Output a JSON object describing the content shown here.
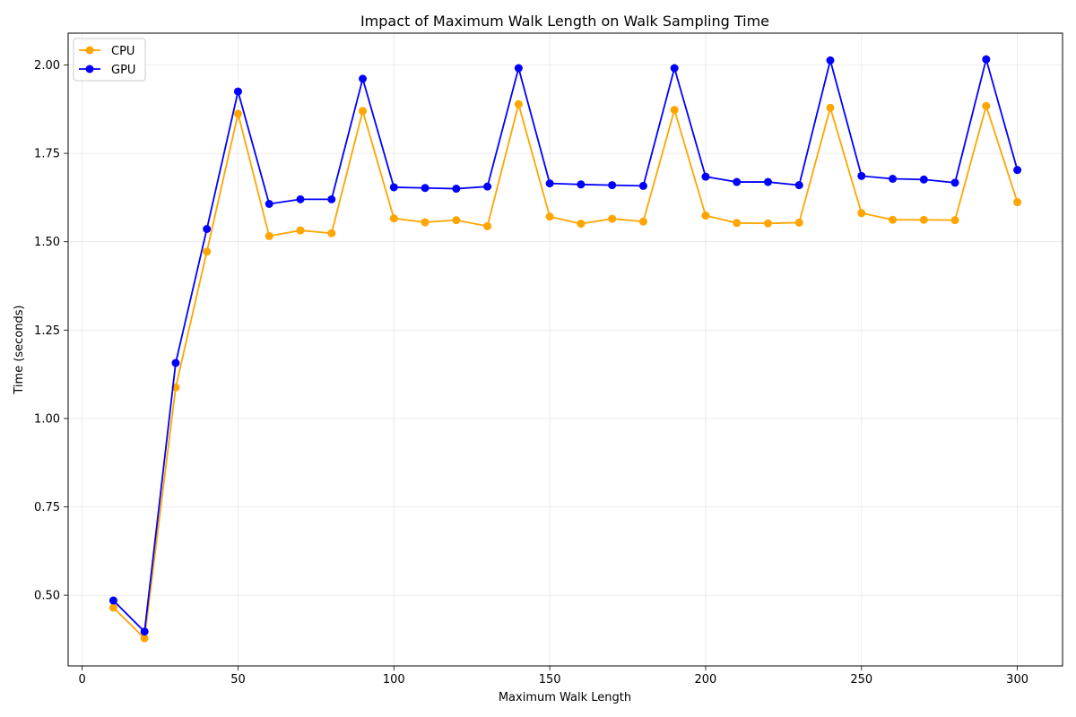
{
  "chart_data": {
    "type": "line",
    "title": "Impact of Maximum Walk Length on Walk Sampling Time",
    "xlabel": "Maximum Walk Length",
    "ylabel": "Time (seconds)",
    "xlim": [
      -4.5,
      314.5
    ],
    "ylim": [
      0.3,
      2.09
    ],
    "xticks": [
      0,
      50,
      100,
      150,
      200,
      250,
      300
    ],
    "yticks": [
      0.5,
      0.75,
      1.0,
      1.25,
      1.5,
      1.75,
      2.0
    ],
    "grid": true,
    "legend_position": "top-left",
    "x": [
      10,
      20,
      30,
      40,
      50,
      60,
      70,
      80,
      90,
      100,
      110,
      120,
      130,
      140,
      150,
      160,
      170,
      180,
      190,
      200,
      210,
      220,
      230,
      240,
      250,
      260,
      270,
      280,
      290,
      300
    ],
    "series": [
      {
        "name": "CPU",
        "color": "#ffa500",
        "values": [
          0.465,
          0.378,
          1.088,
          1.472,
          1.862,
          1.516,
          1.532,
          1.524,
          1.87,
          1.566,
          1.555,
          1.561,
          1.544,
          1.889,
          1.571,
          1.551,
          1.565,
          1.557,
          1.873,
          1.574,
          1.553,
          1.552,
          1.554,
          1.879,
          1.581,
          1.562,
          1.562,
          1.561,
          1.884,
          1.612
        ]
      },
      {
        "name": "GPU",
        "color": "#0000ff",
        "values": [
          0.485,
          0.397,
          1.157,
          1.536,
          1.925,
          1.607,
          1.62,
          1.62,
          1.961,
          1.654,
          1.652,
          1.65,
          1.656,
          1.991,
          1.665,
          1.662,
          1.66,
          1.658,
          1.991,
          1.684,
          1.669,
          1.669,
          1.66,
          2.013,
          1.686,
          1.678,
          1.676,
          1.667,
          2.016,
          1.703
        ]
      }
    ]
  }
}
